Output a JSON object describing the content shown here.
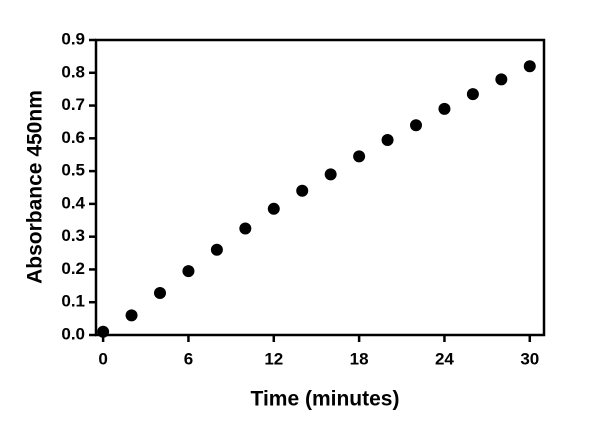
{
  "chart_data": {
    "type": "scatter",
    "x_label": "Time (minutes)",
    "y_label": "Absorbance 450nm",
    "x": [
      0,
      2,
      4,
      6,
      8,
      10,
      12,
      14,
      16,
      18,
      20,
      22,
      24,
      26,
      28,
      30
    ],
    "values": [
      0.01,
      0.06,
      0.128,
      0.195,
      0.26,
      0.325,
      0.385,
      0.44,
      0.49,
      0.545,
      0.595,
      0.64,
      0.69,
      0.735,
      0.78,
      0.82
    ],
    "color": "#000000",
    "xlim": [
      -0.5,
      31
    ],
    "xticks": [
      0,
      6,
      12,
      18,
      24,
      30
    ],
    "ylim": [
      0,
      0.9
    ],
    "yticks": [
      {
        "value": 0,
        "label": "0.0"
      },
      0.1,
      0.2,
      0.3,
      0.4,
      0.5,
      0.6,
      0.7,
      0.8,
      0.9
    ],
    "grid": false
  }
}
